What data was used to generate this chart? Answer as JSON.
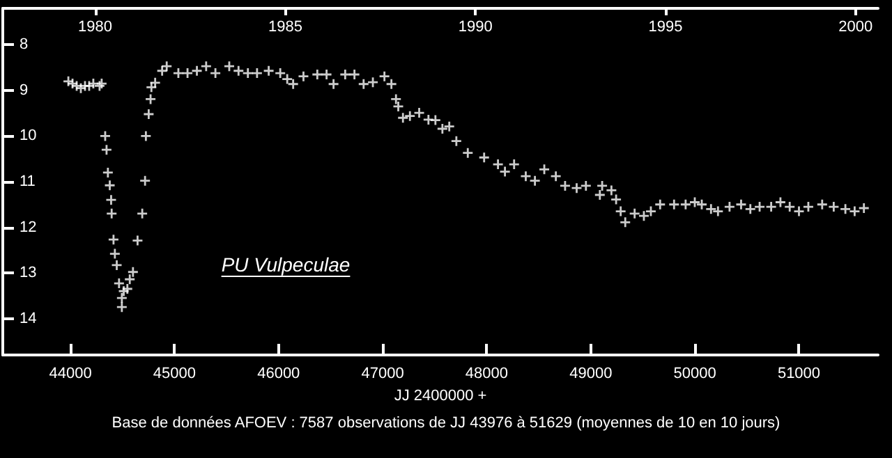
{
  "chart_data": {
    "type": "scatter",
    "title": "PU Vulpeculae",
    "xlabel": "JJ 2400000 +",
    "annotations": [
      "Base de données AFOEV : 7587 observations de JJ 43976 à 51629 (moyennes de 10 en 10 jours)"
    ],
    "xlim": [
      43350,
      51760
    ],
    "xticks": [
      44000,
      45000,
      46000,
      47000,
      48000,
      49000,
      50000,
      51000
    ],
    "x2lim": [
      1977.57,
      2000.59
    ],
    "x2ticks": [
      1980,
      1985,
      1990,
      1995,
      2000
    ],
    "ylim": [
      14.8,
      7.2
    ],
    "yticks": [
      8,
      9,
      10,
      11,
      12,
      13,
      14
    ],
    "grid": false,
    "marker": "cross",
    "series": [
      {
        "color": "#ffffff",
        "x": [
          43980,
          44020,
          44060,
          44100,
          44140,
          44180,
          44220,
          44280,
          44300,
          44334,
          44347,
          44360,
          44378,
          44391,
          44396,
          44414,
          44427,
          44445,
          44467,
          44494,
          44494,
          44512,
          44547,
          44570,
          44601,
          44645,
          44690,
          44717,
          44725,
          44752,
          44770,
          44778,
          44814,
          44881,
          44925,
          45037,
          45125,
          45215,
          45304,
          45393,
          45526,
          45615,
          45705,
          45793,
          45905,
          46016,
          46083,
          46140,
          46239,
          46372,
          46461,
          46528,
          46640,
          46729,
          46817,
          46906,
          47017,
          47084,
          47128,
          47150,
          47195,
          47262,
          47351,
          47440,
          47507,
          47574,
          47640,
          47708,
          47818,
          47975,
          48108,
          48175,
          48263,
          48375,
          48463,
          48553,
          48664,
          48753,
          48864,
          48953,
          49087,
          49109,
          49198,
          49243,
          49287,
          49331,
          49421,
          49510,
          49577,
          49666,
          49800,
          49911,
          49999,
          50066,
          50155,
          50222,
          50333,
          50444,
          50533,
          50622,
          50733,
          50822,
          50911,
          51000,
          51090,
          51223,
          51334,
          51446,
          51535,
          51624
        ],
        "values": [
          8.8,
          8.85,
          8.9,
          8.95,
          8.9,
          8.9,
          8.85,
          8.9,
          8.85,
          10.0,
          10.3,
          10.8,
          11.08,
          11.4,
          11.7,
          12.27,
          12.58,
          12.83,
          13.23,
          13.55,
          13.75,
          13.4,
          13.35,
          13.14,
          12.98,
          12.29,
          11.7,
          10.98,
          10.0,
          9.52,
          9.19,
          8.93,
          8.83,
          8.57,
          8.47,
          8.62,
          8.62,
          8.57,
          8.47,
          8.62,
          8.47,
          8.57,
          8.62,
          8.62,
          8.57,
          8.62,
          8.75,
          8.86,
          8.69,
          8.65,
          8.65,
          8.86,
          8.65,
          8.65,
          8.86,
          8.82,
          8.69,
          8.86,
          9.19,
          9.35,
          9.6,
          9.56,
          9.49,
          9.64,
          9.65,
          9.84,
          9.79,
          10.11,
          10.37,
          10.47,
          10.62,
          10.78,
          10.62,
          10.88,
          10.98,
          10.73,
          10.88,
          11.09,
          11.14,
          11.09,
          11.29,
          11.09,
          11.19,
          11.39,
          11.65,
          11.89,
          11.7,
          11.75,
          11.65,
          11.5,
          11.5,
          11.5,
          11.45,
          11.5,
          11.6,
          11.65,
          11.55,
          11.5,
          11.6,
          11.55,
          11.55,
          11.45,
          11.55,
          11.65,
          11.55,
          11.5,
          11.55,
          11.6,
          11.65,
          11.58
        ]
      }
    ]
  }
}
